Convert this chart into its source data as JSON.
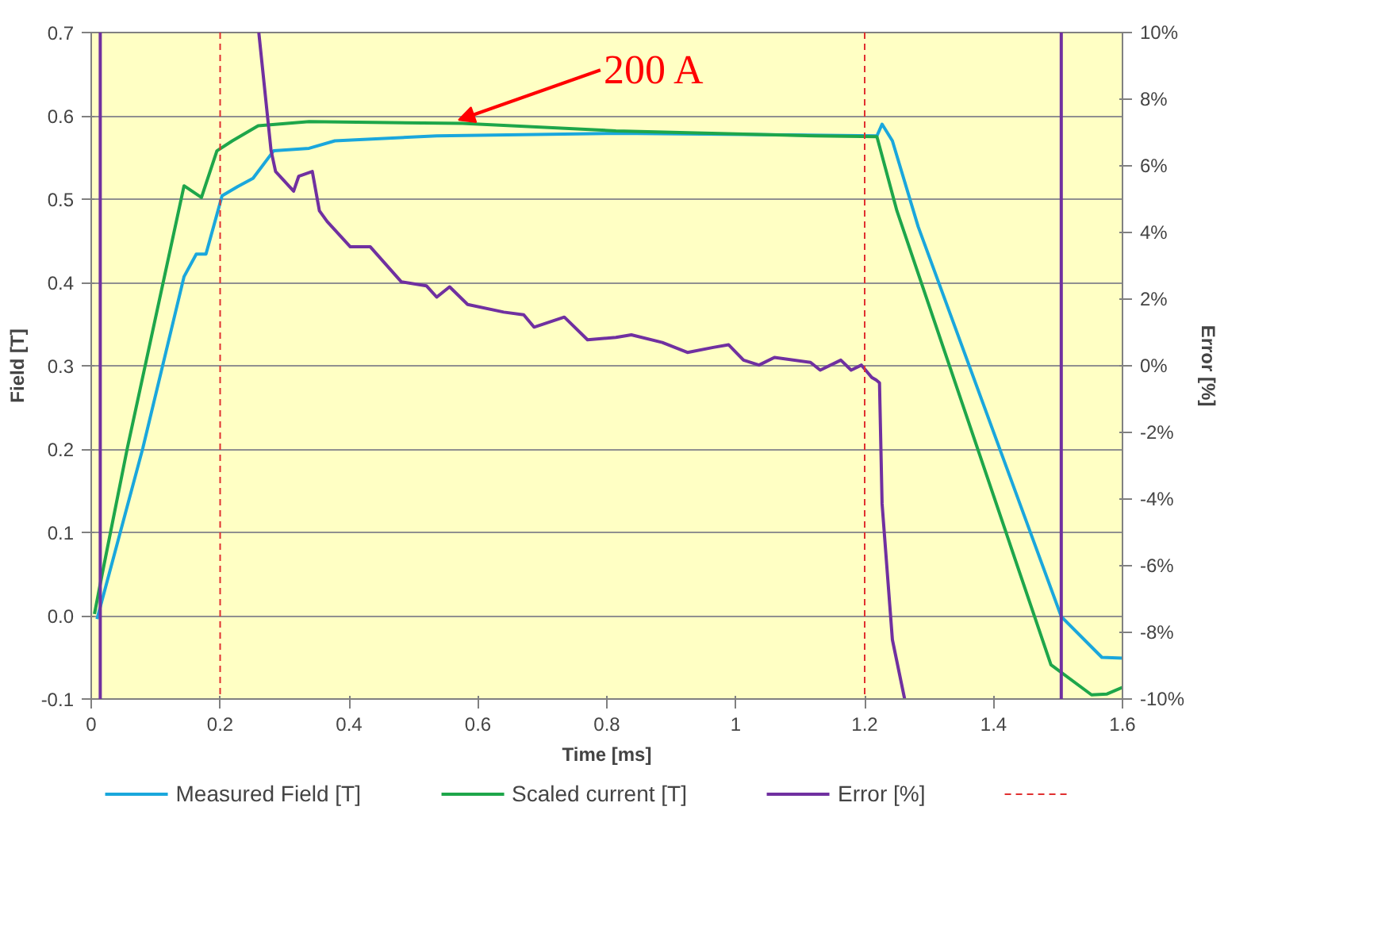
{
  "chart_data": {
    "type": "line",
    "xlabel": "Time [ms]",
    "ylabel": "Field [T]",
    "y2label": "Error [%]",
    "xlim": [
      0,
      1.6
    ],
    "xticks": [
      0,
      0.2,
      0.4,
      0.6,
      0.8,
      1,
      1.2,
      1.4,
      1.6
    ],
    "ylim": [
      -0.1,
      0.7
    ],
    "yticks": [
      -0.1,
      {
        "value": 0,
        "label": "0.0"
      },
      0.1,
      0.2,
      0.3,
      0.4,
      0.5,
      0.6,
      0.7
    ],
    "y2lim": [
      -10,
      10
    ],
    "y2ticks": [
      {
        "value": -10,
        "label": "-10%"
      },
      {
        "value": -8,
        "label": "-8%"
      },
      {
        "value": -6,
        "label": "-6%"
      },
      {
        "value": -4,
        "label": "-4%"
      },
      {
        "value": -2,
        "label": "-2%"
      },
      {
        "value": 0,
        "label": "0%"
      },
      {
        "value": 2,
        "label": "2%"
      },
      {
        "value": 4,
        "label": "4%"
      },
      {
        "value": 6,
        "label": "6%"
      },
      {
        "value": 8,
        "label": "8%"
      },
      {
        "value": 10,
        "label": "10%"
      }
    ],
    "grid": "y",
    "legend": "bottom",
    "marker": "none",
    "line_style": "solid",
    "series": [
      {
        "name": "Measured Field [T]",
        "color": "#1aa7dc",
        "x": [
          0.009,
          0.08,
          0.144,
          0.163,
          0.178,
          0.203,
          0.227,
          0.251,
          0.283,
          0.338,
          0.378,
          0.536,
          0.814,
          1.219,
          1.227,
          1.243,
          1.283,
          1.505,
          1.568,
          1.6
        ],
        "values": [
          -0.004,
          0.201,
          0.407,
          0.434,
          0.434,
          0.504,
          0.515,
          0.525,
          0.558,
          0.561,
          0.57,
          0.576,
          0.579,
          0.576,
          0.59,
          0.57,
          0.467,
          -0.001,
          -0.05,
          -0.051
        ]
      },
      {
        "name": "Scaled current [T]",
        "color": "#1ea64a",
        "x": [
          0.005,
          0.017,
          0.056,
          0.144,
          0.171,
          0.195,
          0.219,
          0.259,
          0.338,
          0.576,
          0.814,
          1.124,
          1.219,
          1.25,
          1.489,
          1.552,
          1.576,
          1.6
        ],
        "values": [
          0.002,
          0.05,
          0.201,
          0.516,
          0.502,
          0.558,
          0.57,
          0.588,
          0.593,
          0.591,
          0.582,
          0.576,
          0.575,
          0.486,
          -0.059,
          -0.095,
          -0.094,
          -0.086
        ]
      },
      {
        "name": "Error [%]",
        "color": "#7030a0",
        "axis": "y2",
        "x": [
          0.26,
          0.279,
          0.286,
          0.314,
          0.322,
          0.343,
          0.354,
          0.366,
          0.402,
          0.433,
          0.481,
          0.52,
          0.536,
          0.556,
          0.584,
          0.64,
          0.671,
          0.687,
          0.734,
          0.77,
          0.814,
          0.838,
          0.886,
          0.925,
          0.965,
          0.989,
          1.012,
          1.036,
          1.06,
          1.116,
          1.131,
          1.163,
          1.179,
          1.195,
          1.211,
          1.218,
          1.223,
          1.227,
          1.243,
          1.262
        ],
        "values": [
          10,
          6.46,
          5.83,
          5.24,
          5.69,
          5.83,
          4.65,
          4.33,
          3.57,
          3.57,
          2.52,
          2.4,
          2.06,
          2.37,
          1.84,
          1.61,
          1.53,
          1.16,
          1.46,
          0.78,
          0.85,
          0.93,
          0.7,
          0.4,
          0.55,
          0.63,
          0.17,
          0.02,
          0.25,
          0.1,
          -0.13,
          0.17,
          -0.13,
          0.02,
          -0.35,
          -0.43,
          -0.51,
          -4.14,
          -8.22,
          -10
        ]
      }
    ],
    "ref_lines": [
      {
        "axis": "x",
        "value": 0.2,
        "color": "#e03030",
        "line_style": "dashed"
      },
      {
        "axis": "x",
        "value": 1.2,
        "color": "#e03030",
        "line_style": "dashed"
      },
      {
        "axis": "x",
        "value": 0.014,
        "color": "#7030a0",
        "line_style": "solid"
      },
      {
        "axis": "x",
        "value": 1.505,
        "color": "#7030a0",
        "line_style": "solid"
      }
    ],
    "annotations": [
      {
        "text": "200 A",
        "x": 0.57,
        "y": 0.59
      }
    ]
  }
}
